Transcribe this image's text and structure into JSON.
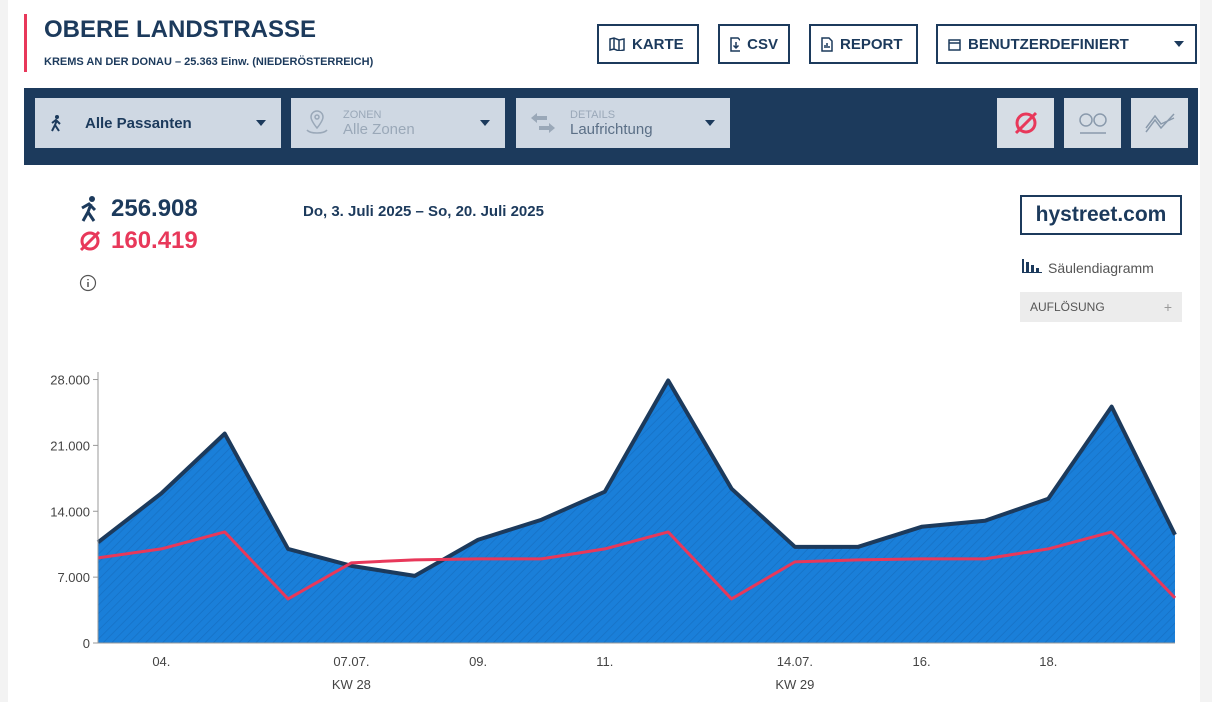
{
  "header": {
    "title": "OBERE LANDSTRASSE",
    "subtitle": "KREMS AN DER DONAU – 25.363 Einw. (NIEDERÖSTERREICH)"
  },
  "buttons": [
    "KARTE",
    "CSV",
    "REPORT",
    "BENUTZERDEFINIERT"
  ],
  "filters": [
    {
      "value": "Alle Passanten"
    },
    {
      "label": "ZONEN",
      "value": "Alle Zonen"
    },
    {
      "label": "DETAILS",
      "value": "Laufrichtung"
    }
  ],
  "summary": {
    "total": "256.908",
    "average": "160.419",
    "date_range": "Do, 3. Juli 2025 – So, 20. Juli 2025"
  },
  "brand": "hystreet.com",
  "chart_toggle": "Säulendiagramm",
  "resolution": {
    "label": "AUFLÖSUNG",
    "icon": "+"
  },
  "chart_data": {
    "type": "area",
    "categories": [
      null,
      "04.",
      null,
      null,
      "07.07.",
      null,
      "09.",
      null,
      "11.",
      null,
      null,
      "14.07.",
      null,
      "16.",
      null,
      "18.",
      null,
      null
    ],
    "sublabels": [
      null,
      null,
      null,
      null,
      "KW 28",
      null,
      null,
      null,
      null,
      null,
      null,
      "KW 29",
      null,
      null,
      null,
      null,
      null,
      null
    ],
    "series": [
      {
        "color": "#1c3a5c",
        "fill": "#1a7fd9",
        "values": [
          10700,
          15900,
          22250,
          10000,
          8200,
          7130,
          10970,
          13100,
          16080,
          27900,
          16400,
          10220,
          10220,
          12350,
          12990,
          15330,
          25120,
          11500
        ]
      },
      {
        "color": "#e8385a",
        "values": [
          9050,
          10000,
          11800,
          4680,
          8520,
          8840,
          8940,
          8940,
          10000,
          11800,
          4680,
          8620,
          8840,
          8940,
          8940,
          10000,
          11800,
          4790
        ]
      }
    ],
    "ylim": [
      0,
      28800
    ],
    "yticks": [
      0,
      {
        "value": 7000,
        "label": "7.000"
      },
      {
        "value": 14000,
        "label": "14.000"
      },
      {
        "value": 21000,
        "label": "21.000"
      },
      {
        "value": 28000,
        "label": "28.000"
      }
    ]
  }
}
